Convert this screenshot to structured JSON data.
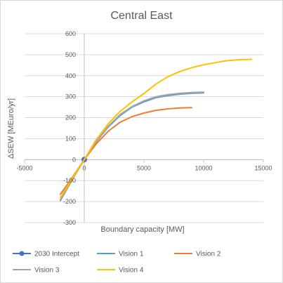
{
  "chart_data": {
    "type": "line",
    "title": "Central East",
    "xlabel": "Boundary capacity [MW]",
    "ylabel": "ΔSEW [MEuro/yr]",
    "xlim": [
      -5000,
      15000
    ],
    "ylim": [
      -300,
      600
    ],
    "xticks": [
      -5000,
      0,
      5000,
      10000,
      15000
    ],
    "yticks": [
      -300,
      -200,
      -100,
      0,
      100,
      200,
      300,
      400,
      500,
      600
    ],
    "xtick_labels": [
      "-5000",
      "0",
      "5000",
      "10000",
      "15000"
    ],
    "ytick_labels": [
      "-300",
      "-200",
      "-100",
      "0",
      "100",
      "200",
      "300",
      "400",
      "500",
      "600"
    ],
    "grid": true,
    "legend_position": "bottom",
    "series": [
      {
        "name": "2030 Intercept",
        "color": "#4472c4",
        "marker": true,
        "points": [
          [
            0,
            0
          ]
        ]
      },
      {
        "name": "Vision 1",
        "color": "#5b9bd5",
        "marker": false,
        "points": [
          [
            -2000,
            -195
          ],
          [
            -1000,
            -95
          ],
          [
            0,
            0
          ],
          [
            1000,
            85
          ],
          [
            2000,
            155
          ],
          [
            3000,
            210
          ],
          [
            4000,
            250
          ],
          [
            5000,
            275
          ],
          [
            6000,
            295
          ],
          [
            7000,
            305
          ],
          [
            8000,
            312
          ],
          [
            9000,
            316
          ],
          [
            10000,
            318
          ]
        ]
      },
      {
        "name": "Vision 2",
        "color": "#ed7d31",
        "marker": false,
        "points": [
          [
            -2000,
            -165
          ],
          [
            -1000,
            -85
          ],
          [
            0,
            0
          ],
          [
            1000,
            75
          ],
          [
            2000,
            135
          ],
          [
            3000,
            178
          ],
          [
            4000,
            205
          ],
          [
            5000,
            222
          ],
          [
            6000,
            235
          ],
          [
            7000,
            242
          ],
          [
            8000,
            246
          ],
          [
            9000,
            248
          ]
        ]
      },
      {
        "name": "Vision 3",
        "color": "#a5a5a5",
        "marker": false,
        "points": [
          [
            -2000,
            -190
          ],
          [
            -1000,
            -95
          ],
          [
            0,
            0
          ],
          [
            1000,
            88
          ],
          [
            2000,
            158
          ],
          [
            3000,
            215
          ],
          [
            4000,
            253
          ],
          [
            5000,
            280
          ],
          [
            6000,
            300
          ],
          [
            7000,
            310
          ],
          [
            8000,
            316
          ],
          [
            9000,
            320
          ],
          [
            10000,
            322
          ]
        ]
      },
      {
        "name": "Vision 4",
        "color": "#ffc000",
        "marker": false,
        "points": [
          [
            -2000,
            -180
          ],
          [
            -1000,
            -90
          ],
          [
            0,
            0
          ],
          [
            1000,
            95
          ],
          [
            2000,
            170
          ],
          [
            3000,
            230
          ],
          [
            4000,
            275
          ],
          [
            5000,
            315
          ],
          [
            6000,
            360
          ],
          [
            7000,
            395
          ],
          [
            8000,
            420
          ],
          [
            9000,
            438
          ],
          [
            10000,
            452
          ],
          [
            11000,
            462
          ],
          [
            12000,
            472
          ],
          [
            13000,
            476
          ],
          [
            14000,
            478
          ]
        ]
      }
    ]
  }
}
